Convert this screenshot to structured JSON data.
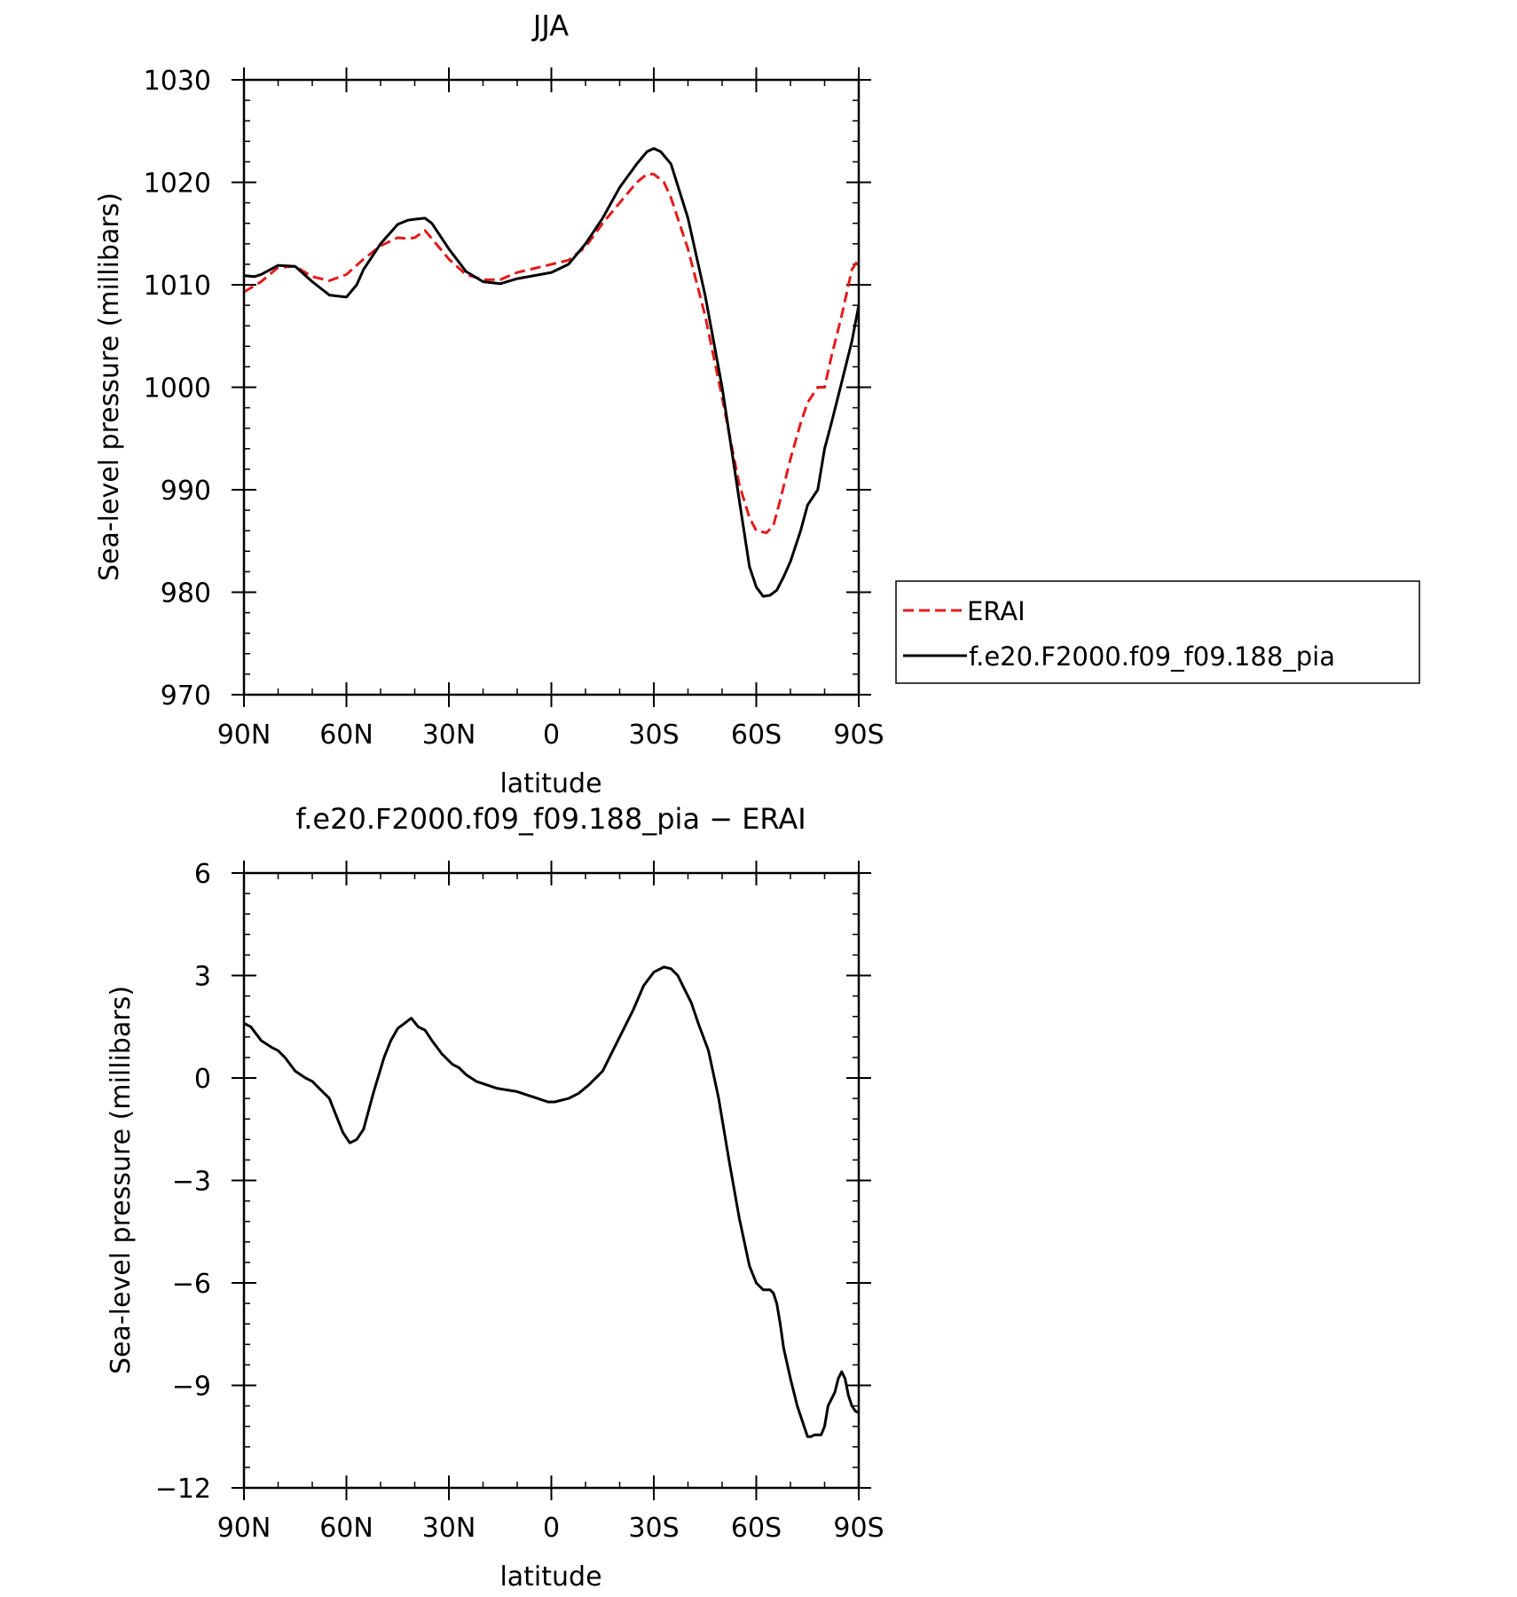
{
  "chart_data": [
    {
      "type": "line",
      "title": "JJA",
      "xlabel": "latitude",
      "ylabel": "Sea-level pressure (millibars)",
      "xlim": [
        90,
        -90
      ],
      "ylim": [
        970,
        1030
      ],
      "x_ticks": [
        90,
        60,
        30,
        0,
        -30,
        -60,
        -90
      ],
      "x_tick_labels": [
        "90N",
        "60N",
        "30N",
        "0",
        "30S",
        "60S",
        "90S"
      ],
      "y_ticks": [
        970,
        980,
        990,
        1000,
        1010,
        1020,
        1030
      ],
      "y_tick_labels": [
        "970",
        "980",
        "990",
        "1000",
        "1010",
        "1020",
        "1030"
      ],
      "grid": false,
      "legend": "right",
      "series": [
        {
          "name": "ERAI",
          "color": "#e41a1c",
          "style": "dashed",
          "x": [
            90,
            85,
            80,
            75,
            70,
            65,
            60,
            55,
            50,
            45,
            42,
            40,
            37,
            35,
            30,
            25,
            20,
            15,
            10,
            5,
            0,
            -5,
            -10,
            -15,
            -20,
            -25,
            -28,
            -30,
            -33,
            -35,
            -40,
            -45,
            -50,
            -55,
            -58,
            -60,
            -63,
            -65,
            -67,
            -70,
            -73,
            -75,
            -78,
            -80,
            -82,
            -85,
            -88,
            -90
          ],
          "y": [
            1009.3,
            1010.3,
            1011.7,
            1011.8,
            1010.8,
            1010.4,
            1011,
            1012.5,
            1013.8,
            1014.6,
            1014.5,
            1014.6,
            1015.3,
            1014.5,
            1012.5,
            1011,
            1010.5,
            1010.5,
            1011.2,
            1011.6,
            1012,
            1012.4,
            1013.7,
            1016,
            1018,
            1020,
            1020.8,
            1020.8,
            1020,
            1018.5,
            1013.5,
            1007,
            999,
            990.5,
            987.3,
            986,
            985.8,
            986.5,
            989,
            993,
            996.5,
            998.5,
            1000,
            1000,
            1003,
            1007,
            1011.5,
            1012.5
          ]
        },
        {
          "name": "f.e20.F2000.f09_f09.188_pia",
          "color": "#000000",
          "style": "solid",
          "x": [
            90,
            87,
            85,
            80,
            75,
            70,
            65,
            60,
            57,
            55,
            50,
            45,
            42,
            40,
            37,
            35,
            30,
            25,
            20,
            15,
            10,
            5,
            0,
            -5,
            -10,
            -15,
            -20,
            -25,
            -28,
            -30,
            -32,
            -35,
            -40,
            -45,
            -50,
            -55,
            -58,
            -60,
            -62,
            -64,
            -66,
            -68,
            -70,
            -73,
            -75,
            -78,
            -80,
            -82,
            -85,
            -88,
            -90
          ],
          "y": [
            1010.9,
            1010.8,
            1011,
            1011.9,
            1011.8,
            1010.3,
            1009,
            1008.8,
            1010,
            1011.5,
            1014,
            1015.9,
            1016.3,
            1016.4,
            1016.5,
            1016,
            1013.5,
            1011.3,
            1010.3,
            1010.1,
            1010.6,
            1010.9,
            1011.2,
            1012,
            1014,
            1016.5,
            1019.5,
            1021.8,
            1023,
            1023.3,
            1023,
            1021.8,
            1016.5,
            1009,
            1000,
            989,
            982.5,
            980.5,
            979.6,
            979.7,
            980.2,
            981.5,
            983,
            986,
            988.5,
            990,
            994,
            996.5,
            1000.5,
            1004.5,
            1008
          ]
        }
      ]
    },
    {
      "type": "line",
      "title": "f.e20.F2000.f09_f09.188_pia − ERAI",
      "xlabel": "latitude",
      "ylabel": "Sea-level pressure (millibars)",
      "xlim": [
        90,
        -90
      ],
      "ylim": [
        -12,
        6
      ],
      "x_ticks": [
        90,
        60,
        30,
        0,
        -30,
        -60,
        -90
      ],
      "x_tick_labels": [
        "90N",
        "60N",
        "30N",
        "0",
        "30S",
        "60S",
        "90S"
      ],
      "y_ticks": [
        -12,
        -9,
        -6,
        -3,
        0,
        3,
        6
      ],
      "y_tick_labels": [
        "−12",
        "−9",
        "−6",
        "−3",
        "0",
        "3",
        "6"
      ],
      "grid": false,
      "series": [
        {
          "color": "#000000",
          "style": "solid",
          "x": [
            90,
            88,
            85,
            82,
            80,
            78,
            75,
            72,
            70,
            68,
            65,
            63,
            61,
            59,
            57,
            55,
            52,
            49,
            47,
            45,
            43,
            41,
            39,
            37,
            35,
            32,
            29,
            27,
            25,
            22,
            19,
            16,
            13,
            10,
            7,
            4,
            1,
            -1,
            -3,
            -5,
            -8,
            -11,
            -15,
            -18,
            -21,
            -24,
            -27,
            -30,
            -33,
            -35,
            -37,
            -39,
            -41,
            -43,
            -46,
            -49,
            -52,
            -55,
            -58,
            -60,
            -62,
            -64,
            -65,
            -66,
            -67,
            -68,
            -70,
            -72,
            -74,
            -75,
            -76,
            -77,
            -79,
            -80,
            -81,
            -82,
            -83,
            -84,
            -85,
            -86,
            -87,
            -88,
            -89,
            -90
          ],
          "y": [
            1.6,
            1.5,
            1.1,
            0.9,
            0.8,
            0.6,
            0.2,
            0,
            -0.1,
            -0.3,
            -0.6,
            -1.1,
            -1.6,
            -1.9,
            -1.8,
            -1.5,
            -0.4,
            0.6,
            1.1,
            1.45,
            1.6,
            1.75,
            1.5,
            1.4,
            1.1,
            0.7,
            0.4,
            0.3,
            0.1,
            -0.1,
            -0.2,
            -0.3,
            -0.35,
            -0.4,
            -0.5,
            -0.6,
            -0.7,
            -0.7,
            -0.65,
            -0.6,
            -0.45,
            -0.2,
            0.2,
            0.8,
            1.4,
            2.0,
            2.7,
            3.1,
            3.25,
            3.2,
            3.0,
            2.6,
            2.2,
            1.6,
            0.8,
            -0.6,
            -2.4,
            -4.1,
            -5.5,
            -6.0,
            -6.2,
            -6.2,
            -6.3,
            -6.6,
            -7.2,
            -7.9,
            -8.8,
            -9.6,
            -10.2,
            -10.5,
            -10.5,
            -10.45,
            -10.45,
            -10.2,
            -9.6,
            -9.4,
            -9.2,
            -8.8,
            -8.6,
            -8.8,
            -9.3,
            -9.6,
            -9.75,
            -9.8
          ]
        }
      ]
    }
  ]
}
